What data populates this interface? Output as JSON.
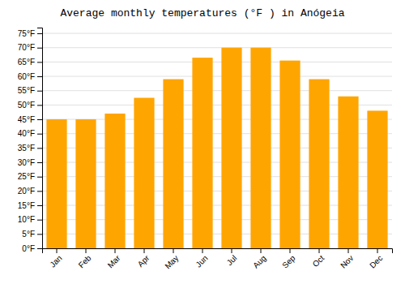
{
  "chart_data": {
    "type": "bar",
    "title": "Average monthly temperatures (°F ) in Anógeia",
    "categories": [
      "Jan",
      "Feb",
      "Mar",
      "Apr",
      "May",
      "Jun",
      "Jul",
      "Aug",
      "Sep",
      "Oct",
      "Nov",
      "Dec"
    ],
    "values": [
      45,
      45,
      47,
      52.5,
      59,
      66.5,
      70,
      70,
      65.5,
      59,
      53,
      48
    ],
    "color": "#FFA500",
    "ylim": [
      0,
      77
    ],
    "yticks": [
      {
        "value": 0,
        "label": "0°F"
      },
      {
        "value": 5,
        "label": "5°F"
      },
      {
        "value": 10,
        "label": "10°F"
      },
      {
        "value": 15,
        "label": "15°F"
      },
      {
        "value": 20,
        "label": "20°F"
      },
      {
        "value": 25,
        "label": "25°F"
      },
      {
        "value": 30,
        "label": "30°F"
      },
      {
        "value": 35,
        "label": "35°F"
      },
      {
        "value": 40,
        "label": "40°F"
      },
      {
        "value": 45,
        "label": "45°F"
      },
      {
        "value": 50,
        "label": "50°F"
      },
      {
        "value": 55,
        "label": "55°F"
      },
      {
        "value": 60,
        "label": "60°F"
      },
      {
        "value": 65,
        "label": "65°F"
      },
      {
        "value": 70,
        "label": "70°F"
      },
      {
        "value": 75,
        "label": "75°F"
      }
    ],
    "grid": true
  }
}
